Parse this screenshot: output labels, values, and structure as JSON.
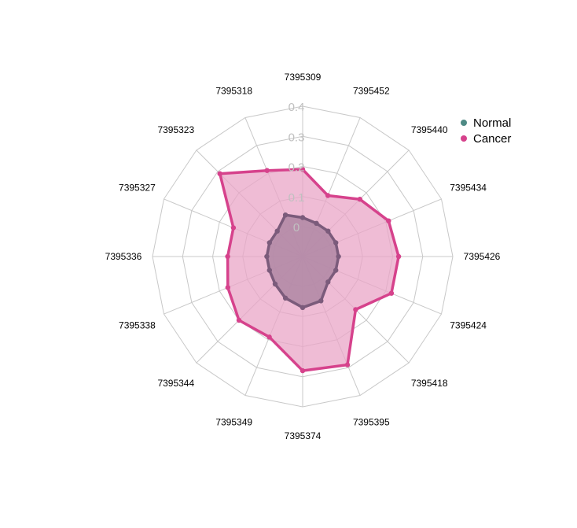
{
  "chart_data": {
    "type": "radar",
    "categories": [
      "7395309",
      "7395452",
      "7395440",
      "7395434",
      "7395426",
      "7395424",
      "7395418",
      "7395395",
      "7395374",
      "7395349",
      "7395344",
      "7395338",
      "7395336",
      "7395327",
      "7395323",
      "7395318"
    ],
    "radial_ticks": [
      "0",
      "0.1",
      "0.2",
      "0.3",
      "0.4"
    ],
    "rlim": [
      0,
      0.4
    ],
    "grid": true,
    "legend_position": "right",
    "series": [
      {
        "name": "Normal",
        "color": "#4e8a85",
        "values": [
          0.03,
          0.02,
          0.02,
          0.02,
          0.02,
          0.02,
          0.02,
          0.06,
          0.07,
          0.05,
          0.03,
          0.02,
          0.02,
          0.02,
          0.02,
          0.05
        ]
      },
      {
        "name": "Cancer",
        "color": "#d6428c",
        "values": [
          0.19,
          0.12,
          0.17,
          0.21,
          0.22,
          0.22,
          0.15,
          0.29,
          0.28,
          0.19,
          0.2,
          0.17,
          0.15,
          0.15,
          0.29,
          0.21
        ]
      }
    ]
  },
  "colors": {
    "normal_fill": "#b38aa6",
    "normal_line": "#7b5b7b",
    "cancer_fill": "#e9a6c7",
    "cancer_line": "#d6428c",
    "grid": "#c8c8c8",
    "tick_text": "#c0c0c0"
  }
}
